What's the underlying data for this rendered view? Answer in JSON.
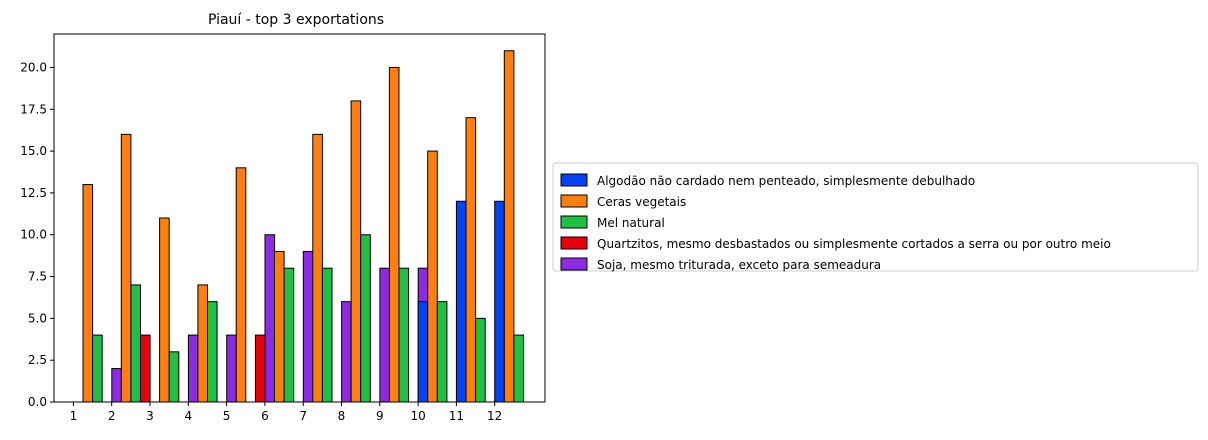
{
  "chart_data": {
    "type": "bar",
    "title": "Piauí - top 3 exportations",
    "xlabel": "",
    "ylabel": "",
    "categories": [
      "1",
      "2",
      "3",
      "4",
      "5",
      "6",
      "7",
      "8",
      "9",
      "10",
      "11",
      "12"
    ],
    "ylim": [
      0,
      22
    ],
    "yticks": [
      0.0,
      2.5,
      5.0,
      7.5,
      10.0,
      12.5,
      15.0,
      17.5,
      20.0
    ],
    "ytick_labels": [
      "0.0",
      "2.5",
      "5.0",
      "7.5",
      "10.0",
      "12.5",
      "15.0",
      "17.5",
      "20.0"
    ],
    "grid": false,
    "legend_position": "right",
    "series": [
      {
        "name": "Algodão não cardado nem penteado, simplesmente debulhado",
        "color": "#0343f5",
        "values": [
          null,
          null,
          null,
          null,
          null,
          null,
          null,
          null,
          null,
          6,
          12,
          12
        ]
      },
      {
        "name": "Ceras vegetais",
        "color": "#ff7f0e",
        "values": [
          13,
          16,
          11,
          7,
          14,
          9,
          16,
          18,
          20,
          15,
          17,
          21
        ]
      },
      {
        "name": "Mel natural",
        "color": "#1fc045",
        "values": [
          4,
          7,
          3,
          6,
          null,
          8,
          8,
          10,
          8,
          6,
          5,
          4
        ]
      },
      {
        "name": "Quartzitos, mesmo desbastados ou simplesmente cortados a serra ou por outro meio",
        "color": "#e8000b",
        "values": [
          null,
          4,
          null,
          null,
          4,
          null,
          null,
          null,
          null,
          null,
          null,
          null
        ]
      },
      {
        "name": "Soja, mesmo triturada, exceto para semeadura",
        "color": "#8b2be2",
        "values": [
          2,
          null,
          4,
          4,
          10,
          9,
          6,
          8,
          8,
          null,
          null,
          null
        ]
      }
    ]
  }
}
